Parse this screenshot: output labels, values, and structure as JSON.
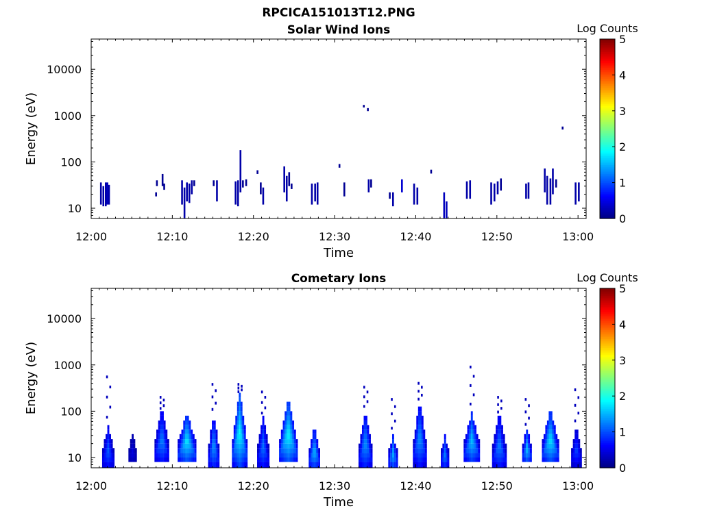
{
  "figure_title": "RPCICA151013T12.PNG",
  "colorbar": {
    "label": "Log Counts",
    "range": [
      0,
      5
    ],
    "ticks": [
      "0",
      "1",
      "2",
      "3",
      "4",
      "5"
    ]
  },
  "chart_data": [
    {
      "type": "heatmap",
      "title": "Solar Wind Ions",
      "xlabel": "Time",
      "ylabel": "Energy (eV)",
      "x_ticks": [
        "12:00",
        "12:10",
        "12:20",
        "12:30",
        "12:40",
        "12:50",
        "13:00"
      ],
      "y_ticks": [
        "10",
        "100",
        "1000",
        "10000"
      ],
      "y_scale": "log",
      "xlim_minutes": [
        0,
        61
      ],
      "ylim_eV": [
        6,
        45000
      ],
      "cell_width_minutes": 0.22,
      "cells": [
        {
          "t": 1.2,
          "e1": 12,
          "e2": 36,
          "v": 0.2
        },
        {
          "t": 1.5,
          "e1": 11,
          "e2": 30,
          "v": 0.2
        },
        {
          "t": 1.8,
          "e1": 11,
          "e2": 36,
          "v": 0.2
        },
        {
          "t": 2.0,
          "e1": 12,
          "e2": 36,
          "v": 0.3
        },
        {
          "t": 2.2,
          "e1": 12,
          "e2": 32,
          "v": 0.2
        },
        {
          "t": 8.1,
          "e1": 30,
          "e2": 40,
          "v": 0.1
        },
        {
          "t": 8.0,
          "e1": 18,
          "e2": 22,
          "v": 0.1
        },
        {
          "t": 8.8,
          "e1": 30,
          "e2": 55,
          "v": 0.1
        },
        {
          "t": 9.0,
          "e1": 25,
          "e2": 34,
          "v": 0.1
        },
        {
          "t": 11.2,
          "e1": 12,
          "e2": 40,
          "v": 0.2
        },
        {
          "t": 11.5,
          "e1": 6,
          "e2": 28,
          "v": 0.2
        },
        {
          "t": 11.8,
          "e1": 14,
          "e2": 36,
          "v": 0.2
        },
        {
          "t": 12.1,
          "e1": 13,
          "e2": 34,
          "v": 0.2
        },
        {
          "t": 12.4,
          "e1": 20,
          "e2": 40,
          "v": 0.2
        },
        {
          "t": 12.7,
          "e1": 30,
          "e2": 40,
          "v": 0.1
        },
        {
          "t": 15.1,
          "e1": 30,
          "e2": 40,
          "v": 0.1
        },
        {
          "t": 15.5,
          "e1": 14,
          "e2": 40,
          "v": 0.2
        },
        {
          "t": 17.8,
          "e1": 12,
          "e2": 38,
          "v": 0.2
        },
        {
          "t": 18.1,
          "e1": 11,
          "e2": 40,
          "v": 0.2
        },
        {
          "t": 18.4,
          "e1": 22,
          "e2": 180,
          "v": 0.2
        },
        {
          "t": 18.7,
          "e1": 28,
          "e2": 40,
          "v": 0.1
        },
        {
          "t": 19.1,
          "e1": 30,
          "e2": 42,
          "v": 0.1
        },
        {
          "t": 20.5,
          "e1": 55,
          "e2": 66,
          "v": 0.1
        },
        {
          "t": 21.2,
          "e1": 12,
          "e2": 28,
          "v": 0.2
        },
        {
          "t": 20.9,
          "e1": 20,
          "e2": 36,
          "v": 0.1
        },
        {
          "t": 23.8,
          "e1": 22,
          "e2": 80,
          "v": 0.2
        },
        {
          "t": 24.1,
          "e1": 14,
          "e2": 50,
          "v": 0.2
        },
        {
          "t": 24.4,
          "e1": 30,
          "e2": 60,
          "v": 0.1
        },
        {
          "t": 24.7,
          "e1": 26,
          "e2": 34,
          "v": 0.1
        },
        {
          "t": 27.2,
          "e1": 12,
          "e2": 34,
          "v": 0.2
        },
        {
          "t": 27.6,
          "e1": 14,
          "e2": 34,
          "v": 0.2
        },
        {
          "t": 27.9,
          "e1": 12,
          "e2": 36,
          "v": 0.2
        },
        {
          "t": 30.6,
          "e1": 75,
          "e2": 90,
          "v": 0.1
        },
        {
          "t": 31.2,
          "e1": 18,
          "e2": 36,
          "v": 0.1
        },
        {
          "t": 33.6,
          "e1": 1500,
          "e2": 1700,
          "v": 0.1
        },
        {
          "t": 34.1,
          "e1": 1250,
          "e2": 1450,
          "v": 0.1
        },
        {
          "t": 34.2,
          "e1": 22,
          "e2": 42,
          "v": 0.2
        },
        {
          "t": 34.5,
          "e1": 28,
          "e2": 42,
          "v": 0.1
        },
        {
          "t": 36.8,
          "e1": 16,
          "e2": 22,
          "v": 0.1
        },
        {
          "t": 37.2,
          "e1": 11,
          "e2": 22,
          "v": 0.2
        },
        {
          "t": 38.3,
          "e1": 22,
          "e2": 42,
          "v": 0.4
        },
        {
          "t": 39.8,
          "e1": 12,
          "e2": 34,
          "v": 0.2
        },
        {
          "t": 40.2,
          "e1": 12,
          "e2": 28,
          "v": 0.2
        },
        {
          "t": 41.9,
          "e1": 56,
          "e2": 68,
          "v": 0.1
        },
        {
          "t": 43.5,
          "e1": 6,
          "e2": 22,
          "v": 0.3
        },
        {
          "t": 43.8,
          "e1": 6,
          "e2": 14,
          "v": 0.3
        },
        {
          "t": 46.3,
          "e1": 16,
          "e2": 38,
          "v": 0.2
        },
        {
          "t": 46.7,
          "e1": 16,
          "e2": 40,
          "v": 0.2
        },
        {
          "t": 49.3,
          "e1": 12,
          "e2": 36,
          "v": 0.2
        },
        {
          "t": 49.7,
          "e1": 14,
          "e2": 34,
          "v": 0.2
        },
        {
          "t": 50.1,
          "e1": 20,
          "e2": 38,
          "v": 0.2
        },
        {
          "t": 50.5,
          "e1": 24,
          "e2": 44,
          "v": 0.1
        },
        {
          "t": 53.6,
          "e1": 16,
          "e2": 34,
          "v": 0.2
        },
        {
          "t": 53.9,
          "e1": 16,
          "e2": 36,
          "v": 0.2
        },
        {
          "t": 55.9,
          "e1": 22,
          "e2": 72,
          "v": 0.2
        },
        {
          "t": 56.2,
          "e1": 12,
          "e2": 50,
          "v": 0.2
        },
        {
          "t": 56.6,
          "e1": 12,
          "e2": 44,
          "v": 0.2
        },
        {
          "t": 56.9,
          "e1": 20,
          "e2": 72,
          "v": 0.2
        },
        {
          "t": 57.3,
          "e1": 28,
          "e2": 42,
          "v": 0.1
        },
        {
          "t": 58.1,
          "e1": 500,
          "e2": 580,
          "v": 0.1
        },
        {
          "t": 59.7,
          "e1": 12,
          "e2": 36,
          "v": 0.2
        },
        {
          "t": 60.1,
          "e1": 14,
          "e2": 36,
          "v": 0.2
        }
      ]
    },
    {
      "type": "heatmap",
      "title": "Cometary Ions",
      "xlabel": "Time",
      "ylabel": "Energy (eV)",
      "x_ticks": [
        "12:00",
        "12:10",
        "12:20",
        "12:30",
        "12:40",
        "12:50",
        "13:00"
      ],
      "y_ticks": [
        "10",
        "100",
        "1000",
        "10000"
      ],
      "y_scale": "log",
      "xlim_minutes": [
        0,
        61
      ],
      "ylim_eV": [
        6,
        45000
      ],
      "cell_width_minutes": 0.22,
      "clusters": [
        {
          "t": 2.1,
          "w": 1.5,
          "e_low": 6,
          "e_high": 45,
          "v": 1.1,
          "tail": 550
        },
        {
          "t": 5.1,
          "w": 1.0,
          "e_low": 8,
          "e_high": 28,
          "v": 0.5,
          "tail": 0
        },
        {
          "t": 8.7,
          "w": 1.8,
          "e_low": 8,
          "e_high": 100,
          "v": 1.3,
          "tail": 200
        },
        {
          "t": 11.8,
          "w": 2.3,
          "e_low": 8,
          "e_high": 90,
          "v": 1.8,
          "tail": 0
        },
        {
          "t": 15.1,
          "w": 1.4,
          "e_low": 6,
          "e_high": 80,
          "v": 1.4,
          "tail": 380
        },
        {
          "t": 18.3,
          "w": 1.9,
          "e_low": 7,
          "e_high": 240,
          "v": 1.9,
          "tail": 380
        },
        {
          "t": 21.2,
          "w": 1.5,
          "e_low": 6,
          "e_high": 70,
          "v": 1.2,
          "tail": 260
        },
        {
          "t": 24.3,
          "w": 2.3,
          "e_low": 8,
          "e_high": 180,
          "v": 1.9,
          "tail": 0
        },
        {
          "t": 27.5,
          "w": 1.4,
          "e_low": 6,
          "e_high": 42,
          "v": 1.6,
          "tail": 0
        },
        {
          "t": 33.8,
          "w": 1.7,
          "e_low": 6,
          "e_high": 100,
          "v": 1.4,
          "tail": 330
        },
        {
          "t": 37.2,
          "w": 1.2,
          "e_low": 6,
          "e_high": 30,
          "v": 1.5,
          "tail": 180
        },
        {
          "t": 40.5,
          "w": 1.7,
          "e_low": 7,
          "e_high": 150,
          "v": 1.4,
          "tail": 400
        },
        {
          "t": 43.6,
          "w": 1.0,
          "e_low": 6,
          "e_high": 30,
          "v": 1.3,
          "tail": 0
        },
        {
          "t": 46.9,
          "w": 2.0,
          "e_low": 8,
          "e_high": 90,
          "v": 1.6,
          "tail": 900
        },
        {
          "t": 50.3,
          "w": 1.8,
          "e_low": 6,
          "e_high": 80,
          "v": 1.3,
          "tail": 200
        },
        {
          "t": 53.7,
          "w": 1.2,
          "e_low": 8,
          "e_high": 38,
          "v": 1.6,
          "tail": 180
        },
        {
          "t": 56.6,
          "w": 2.1,
          "e_low": 8,
          "e_high": 100,
          "v": 1.8,
          "tail": 0
        },
        {
          "t": 59.8,
          "w": 1.3,
          "e_low": 7,
          "e_high": 42,
          "v": 1.0,
          "tail": 290
        }
      ]
    }
  ]
}
